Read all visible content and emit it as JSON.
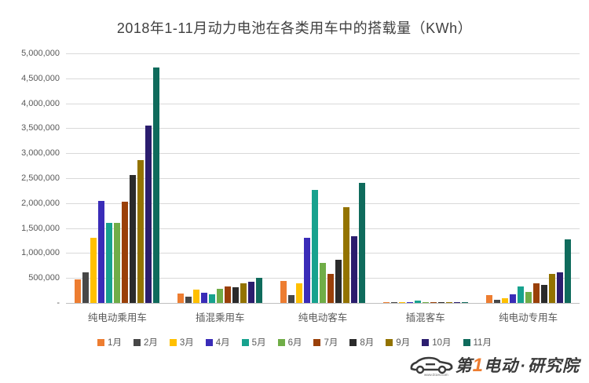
{
  "title": "2018年1-11月动力电池在各类用车中的搭载量（KWh）",
  "chart_data": {
    "type": "bar",
    "title": "2018年1-11月动力电池在各类用车中的搭载量（KWh）",
    "xlabel": "",
    "ylabel": "",
    "ylim": [
      0,
      5000000
    ],
    "ytick_step": 500000,
    "ytick_labels": [
      "-",
      "500,000",
      "1,000,000",
      "1,500,000",
      "2,000,000",
      "2,500,000",
      "3,000,000",
      "3,500,000",
      "4,000,000",
      "4,500,000",
      "5,000,000"
    ],
    "grid": true,
    "legend_position": "bottom",
    "categories": [
      "纯电动乘用车",
      "插混乘用车",
      "纯电动客车",
      "插混客车",
      "纯电动专用车"
    ],
    "series": [
      {
        "name": "1月",
        "color": "#ED7D31",
        "values": [
          470000,
          190000,
          440000,
          15000,
          160000
        ]
      },
      {
        "name": "2月",
        "color": "#474747",
        "values": [
          620000,
          130000,
          150000,
          10000,
          60000
        ]
      },
      {
        "name": "3月",
        "color": "#FFC000",
        "values": [
          1300000,
          260000,
          400000,
          20000,
          90000
        ]
      },
      {
        "name": "4月",
        "color": "#3A2CB8",
        "values": [
          2050000,
          200000,
          1300000,
          15000,
          170000
        ]
      },
      {
        "name": "5月",
        "color": "#17A28E",
        "values": [
          1600000,
          175000,
          2260000,
          45000,
          330000
        ]
      },
      {
        "name": "6月",
        "color": "#70AD47",
        "values": [
          1610000,
          290000,
          800000,
          20000,
          220000
        ]
      },
      {
        "name": "7月",
        "color": "#9A4009",
        "values": [
          2030000,
          335000,
          580000,
          18000,
          400000
        ]
      },
      {
        "name": "8月",
        "color": "#2B2B2B",
        "values": [
          2570000,
          315000,
          860000,
          15000,
          360000
        ]
      },
      {
        "name": "9月",
        "color": "#937300",
        "values": [
          2860000,
          390000,
          1920000,
          20000,
          580000
        ]
      },
      {
        "name": "10月",
        "color": "#2B1D6E",
        "values": [
          3550000,
          430000,
          1330000,
          12000,
          615000
        ]
      },
      {
        "name": "11月",
        "color": "#0F6B5C",
        "values": [
          4720000,
          510000,
          2400000,
          18000,
          1280000
        ]
      }
    ],
    "colors": {
      "gridline": "#D9D9D9",
      "axis_line": "#BFBFBF",
      "title_text": "#404040",
      "tick_text": "#595959"
    }
  },
  "logo": {
    "brand_pre": "第",
    "brand_num": "1",
    "brand_post": "电动",
    "separator": "·",
    "suffix": "研究院",
    "url": "www.D1ev.com"
  }
}
